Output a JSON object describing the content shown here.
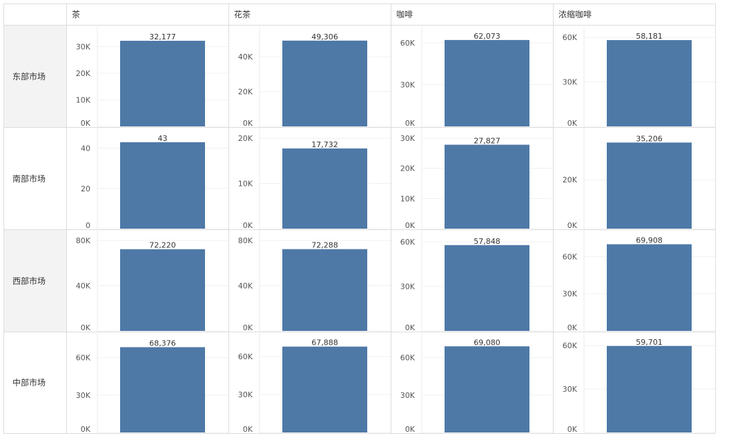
{
  "chart_data": {
    "type": "bar",
    "columns": [
      "茶",
      "花茶",
      "咖啡",
      "浓缩咖啡"
    ],
    "rows": [
      "东部市场",
      "南部市场",
      "西部市场",
      "中部市场"
    ],
    "bar_color": "#4e79a7",
    "row_header_shade": "#f3f3f3",
    "grid": true,
    "panels": [
      [
        {
          "value": 32177,
          "label": "32,177",
          "ymax": 34000,
          "ticks": [
            {
              "v": 0,
              "t": "0K"
            },
            {
              "v": 10000,
              "t": "10K"
            },
            {
              "v": 20000,
              "t": "20K"
            },
            {
              "v": 30000,
              "t": "30K"
            }
          ]
        },
        {
          "value": 49306,
          "label": "49,306",
          "ymax": 52000,
          "ticks": [
            {
              "v": 0,
              "t": "0K"
            },
            {
              "v": 20000,
              "t": "20K"
            },
            {
              "v": 40000,
              "t": "40K"
            }
          ]
        },
        {
          "value": 62073,
          "label": "62,073",
          "ymax": 65000,
          "ticks": [
            {
              "v": 0,
              "t": "0K"
            },
            {
              "v": 30000,
              "t": "30K"
            },
            {
              "v": 60000,
              "t": "60K"
            }
          ]
        },
        {
          "value": 58181,
          "label": "58,181",
          "ymax": 61000,
          "ticks": [
            {
              "v": 0,
              "t": "0K"
            },
            {
              "v": 30000,
              "t": "30K"
            },
            {
              "v": 60000,
              "t": "60K"
            }
          ]
        }
      ],
      [
        {
          "value": 43,
          "label": "43",
          "ymax": 45,
          "ticks": [
            {
              "v": 0,
              "t": "0"
            },
            {
              "v": 20,
              "t": "20"
            },
            {
              "v": 40,
              "t": "40"
            }
          ]
        },
        {
          "value": 17732,
          "label": "17,732",
          "ymax": 20000,
          "ticks": [
            {
              "v": 0,
              "t": "0K"
            },
            {
              "v": 10000,
              "t": "10K"
            },
            {
              "v": 20000,
              "t": "20K"
            }
          ]
        },
        {
          "value": 27827,
          "label": "27,827",
          "ymax": 30000,
          "ticks": [
            {
              "v": 0,
              "t": "0K"
            },
            {
              "v": 10000,
              "t": "10K"
            },
            {
              "v": 20000,
              "t": "20K"
            },
            {
              "v": 30000,
              "t": "30K"
            }
          ]
        },
        {
          "value": 35206,
          "label": "35,206",
          "ymax": 37000,
          "ticks": [
            {
              "v": 0,
              "t": "0K"
            },
            {
              "v": 20000,
              "t": "20K"
            }
          ]
        }
      ],
      [
        {
          "value": 72220,
          "label": "72,220",
          "ymax": 80000,
          "ticks": [
            {
              "v": 0,
              "t": "0K"
            },
            {
              "v": 40000,
              "t": "40K"
            },
            {
              "v": 80000,
              "t": "80K"
            }
          ]
        },
        {
          "value": 72288,
          "label": "72,288",
          "ymax": 80000,
          "ticks": [
            {
              "v": 0,
              "t": "0K"
            },
            {
              "v": 40000,
              "t": "40K"
            },
            {
              "v": 80000,
              "t": "80K"
            }
          ]
        },
        {
          "value": 57848,
          "label": "57,848",
          "ymax": 61000,
          "ticks": [
            {
              "v": 0,
              "t": "0K"
            },
            {
              "v": 30000,
              "t": "30K"
            },
            {
              "v": 60000,
              "t": "60K"
            }
          ]
        },
        {
          "value": 69908,
          "label": "69,908",
          "ymax": 73000,
          "ticks": [
            {
              "v": 0,
              "t": "0K"
            },
            {
              "v": 30000,
              "t": "30K"
            },
            {
              "v": 60000,
              "t": "60K"
            }
          ]
        }
      ],
      [
        {
          "value": 68376,
          "label": "68,376",
          "ymax": 72000,
          "ticks": [
            {
              "v": 0,
              "t": "0K"
            },
            {
              "v": 30000,
              "t": "30K"
            },
            {
              "v": 60000,
              "t": "60K"
            }
          ]
        },
        {
          "value": 67888,
          "label": "67,888",
          "ymax": 71000,
          "ticks": [
            {
              "v": 0,
              "t": "0K"
            },
            {
              "v": 30000,
              "t": "30K"
            },
            {
              "v": 60000,
              "t": "60K"
            }
          ]
        },
        {
          "value": 69080,
          "label": "69,080",
          "ymax": 72000,
          "ticks": [
            {
              "v": 0,
              "t": "0K"
            },
            {
              "v": 30000,
              "t": "30K"
            },
            {
              "v": 60000,
              "t": "60K"
            }
          ]
        },
        {
          "value": 59701,
          "label": "59,701",
          "ymax": 62000,
          "ticks": [
            {
              "v": 0,
              "t": "0K"
            },
            {
              "v": 30000,
              "t": "30K"
            },
            {
              "v": 60000,
              "t": "60K"
            }
          ]
        }
      ]
    ]
  }
}
